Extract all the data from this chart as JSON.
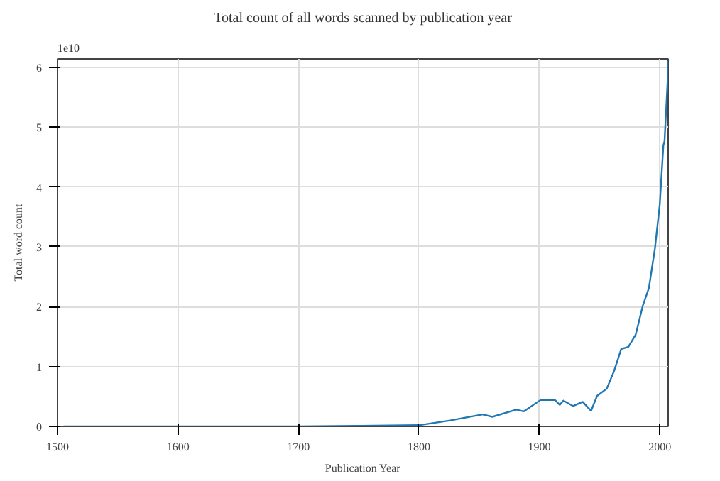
{
  "chart_data": {
    "type": "line",
    "title": "Total count of all words scanned by publication year",
    "xlabel": "Publication Year",
    "ylabel": "Total word count",
    "annotations": [
      "1e10"
    ],
    "x": [
      1505,
      1600,
      1700,
      1750,
      1800,
      1826,
      1853,
      1861,
      1881,
      1887,
      1901,
      1913,
      1917,
      1920,
      1928,
      1936,
      1943,
      1948,
      1956,
      1962,
      1968,
      1974,
      1980,
      1986,
      1991,
      1996,
      2000,
      2003,
      2004,
      2006.5,
      2007
    ],
    "series": [
      {
        "color": "#1f77b4",
        "values": [
          0,
          0,
          0,
          0.01,
          0.02,
          0.1,
          0.2,
          0.16,
          0.28,
          0.25,
          0.44,
          0.44,
          0.36,
          0.43,
          0.34,
          0.41,
          0.26,
          0.51,
          0.63,
          0.92,
          1.29,
          1.33,
          1.53,
          2.02,
          2.31,
          2.97,
          3.7,
          4.69,
          4.77,
          5.75,
          6.1
        ]
      }
    ],
    "xlim": [
      1500,
      2007
    ],
    "ylim": [
      0,
      6.14
    ],
    "xticks": [
      1500,
      1600,
      1700,
      1800,
      1900,
      2000
    ],
    "yticks": [
      0,
      1,
      2,
      3,
      4,
      5,
      6
    ],
    "grid": true,
    "line_style": "solid"
  }
}
